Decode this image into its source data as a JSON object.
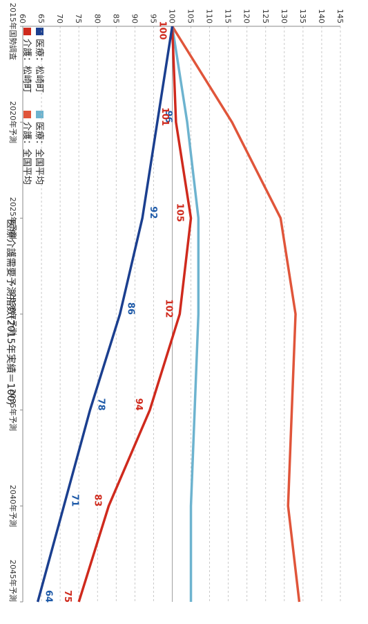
{
  "chart_data": {
    "type": "line",
    "title": "医療介護需要予測指数(2015年実績＝100)",
    "categories": [
      "2015年国勢調査",
      "2020年予測",
      "2025年予測",
      "2030年予測",
      "2035年予測",
      "2040年予測",
      "2045年予測"
    ],
    "ylim": [
      60,
      145
    ],
    "yticks": [
      145,
      140,
      135,
      130,
      125,
      120,
      115,
      110,
      105,
      100,
      95,
      90,
      85,
      80,
      75,
      70,
      65,
      60
    ],
    "grid": true,
    "legend_position": "top-left",
    "series": [
      {
        "name": "医療：松崎町",
        "color": "#1b3f8f",
        "values": [
          100,
          96,
          92,
          86,
          78,
          71,
          64
        ],
        "labels": [
          "",
          "96",
          "92",
          "86",
          "78",
          "71",
          "64"
        ],
        "label_color": "#1e5aa8"
      },
      {
        "name": "医療：全国平均",
        "color": "#6db3cf",
        "values": [
          100,
          104,
          107,
          107,
          106,
          105,
          105
        ],
        "labels": [
          "",
          "",
          "",
          "",
          "",
          "",
          ""
        ],
        "label_color": "#6db3cf"
      },
      {
        "name": "介護：松崎町",
        "color": "#cf2a1d",
        "values": [
          100,
          101,
          105,
          102,
          94,
          83,
          75
        ],
        "labels": [
          "100",
          "101",
          "105",
          "102",
          "94",
          "83",
          "75"
        ],
        "label_color": "#cf2a1d"
      },
      {
        "name": "介護：全国平均",
        "color": "#e0553a",
        "values": [
          100,
          116,
          129,
          133,
          132,
          131,
          134
        ],
        "labels": [
          "",
          "",
          "",
          "",
          "",
          "",
          ""
        ],
        "label_color": "#e0553a"
      }
    ]
  }
}
